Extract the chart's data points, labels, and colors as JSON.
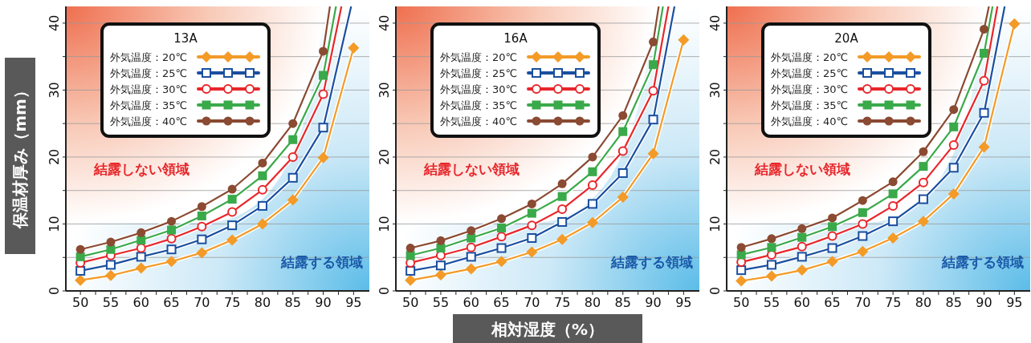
{
  "chart_data": [
    {
      "type": "line",
      "legend_title": "13A",
      "ylabel": "保温材厚み（mm）",
      "legend": "top left",
      "grid": "y",
      "xlim": [
        47.6,
        97.6
      ],
      "ylim": [
        0,
        42.5
      ],
      "xticks": [
        50,
        {
          "value": 52.5,
          "label": null
        },
        55,
        {
          "value": 57.5,
          "label": null
        },
        60,
        {
          "value": 62.5,
          "label": null
        },
        65,
        {
          "value": 67.5,
          "label": null
        },
        70,
        {
          "value": 72.5,
          "label": null
        },
        75,
        {
          "value": 77.5,
          "label": null
        },
        80,
        {
          "value": 82.5,
          "label": null
        },
        85,
        {
          "value": 87.5,
          "label": null
        },
        90,
        {
          "value": 92.5,
          "label": null
        },
        95
      ],
      "yticks": [
        0,
        {
          "value": 5,
          "label": null
        },
        10,
        {
          "value": 15,
          "label": null
        },
        20,
        {
          "value": 25,
          "label": null
        },
        30,
        {
          "value": 35,
          "label": null
        },
        40
      ],
      "annotations": [
        "結露しない領域",
        "結露する領域"
      ],
      "series": [
        {
          "name": "外気温度：20℃",
          "color": "#f39a27",
          "marker": "diamond",
          "x": [
            50,
            55,
            60,
            65,
            70,
            75,
            80,
            85,
            90,
            95
          ],
          "values": [
            1.6,
            2.3,
            3.4,
            4.4,
            5.7,
            7.6,
            10.0,
            13.6,
            19.9,
            36.3
          ]
        },
        {
          "name": "外気温度：25℃",
          "color": "#1a4fa0",
          "marker": "square-open",
          "x": [
            50,
            55,
            60,
            65,
            70,
            75,
            80,
            85,
            90,
            94.6
          ],
          "values": [
            3.0,
            3.9,
            5.1,
            6.2,
            7.7,
            9.8,
            12.7,
            16.9,
            24.4,
            42.5
          ]
        },
        {
          "name": "外気温度：30℃",
          "color": "#e8262b",
          "marker": "circle-open",
          "x": [
            50,
            55,
            60,
            65,
            70,
            75,
            80,
            85,
            90,
            93.0
          ],
          "values": [
            4.2,
            5.3,
            6.4,
            7.8,
            9.6,
            11.8,
            15.1,
            20.0,
            29.4,
            42.5
          ]
        },
        {
          "name": "外気温度：35℃",
          "color": "#3aa94a",
          "marker": "square",
          "x": [
            50,
            55,
            60,
            65,
            70,
            75,
            80,
            85,
            90,
            92.1
          ],
          "values": [
            5.1,
            6.2,
            7.6,
            9.1,
            11.2,
            13.7,
            17.2,
            22.6,
            32.2,
            42.5
          ]
        },
        {
          "name": "外気温度：40℃",
          "color": "#8b4a32",
          "marker": "circle",
          "x": [
            50,
            55,
            60,
            65,
            70,
            75,
            80,
            85,
            90,
            91.1
          ],
          "values": [
            6.2,
            7.3,
            8.7,
            10.4,
            12.6,
            15.2,
            19.1,
            25.0,
            35.8,
            42.5
          ]
        }
      ]
    },
    {
      "type": "line",
      "legend_title": "16A",
      "xlabel": "相対湿度（%）",
      "legend": "top left",
      "grid": "y",
      "xlim": [
        47.6,
        97.6
      ],
      "ylim": [
        0,
        42.5
      ],
      "xticks": [
        50,
        {
          "value": 52.5,
          "label": null
        },
        55,
        {
          "value": 57.5,
          "label": null
        },
        60,
        {
          "value": 62.5,
          "label": null
        },
        65,
        {
          "value": 67.5,
          "label": null
        },
        70,
        {
          "value": 72.5,
          "label": null
        },
        75,
        {
          "value": 77.5,
          "label": null
        },
        80,
        {
          "value": 82.5,
          "label": null
        },
        85,
        {
          "value": 87.5,
          "label": null
        },
        90,
        {
          "value": 92.5,
          "label": null
        },
        95
      ],
      "yticks": [
        0,
        {
          "value": 5,
          "label": null
        },
        10,
        {
          "value": 15,
          "label": null
        },
        20,
        {
          "value": 25,
          "label": null
        },
        30,
        {
          "value": 35,
          "label": null
        },
        40
      ],
      "annotations": [
        "結露しない領域",
        "結露する領域"
      ],
      "series": [
        {
          "name": "外気温度：20℃",
          "color": "#f39a27",
          "marker": "diamond",
          "x": [
            50,
            55,
            60,
            65,
            70,
            75,
            80,
            85,
            90,
            95
          ],
          "values": [
            1.6,
            2.4,
            3.3,
            4.4,
            5.8,
            7.7,
            10.2,
            14.0,
            20.5,
            37.5
          ]
        },
        {
          "name": "外気温度：25℃",
          "color": "#1a4fa0",
          "marker": "square-open",
          "x": [
            50,
            55,
            60,
            65,
            70,
            75,
            80,
            85,
            90,
            93.5
          ],
          "values": [
            3.0,
            3.8,
            5.1,
            6.4,
            7.9,
            10.3,
            13.0,
            17.6,
            25.6,
            42.5
          ]
        },
        {
          "name": "外気温度：30℃",
          "color": "#e8262b",
          "marker": "circle-open",
          "x": [
            50,
            55,
            60,
            65,
            70,
            75,
            80,
            85,
            90,
            92.5
          ],
          "values": [
            4.2,
            5.3,
            6.5,
            8.1,
            9.8,
            12.2,
            15.8,
            20.9,
            29.9,
            42.5
          ]
        },
        {
          "name": "外気温度：35℃",
          "color": "#3aa94a",
          "marker": "square",
          "x": [
            50,
            55,
            60,
            65,
            70,
            75,
            80,
            85,
            90,
            91.6
          ],
          "values": [
            5.3,
            6.4,
            7.9,
            9.4,
            11.6,
            14.1,
            17.8,
            23.8,
            33.8,
            42.5
          ]
        },
        {
          "name": "外気温度：40℃",
          "color": "#8b4a32",
          "marker": "circle",
          "x": [
            50,
            55,
            60,
            65,
            70,
            75,
            80,
            85,
            90,
            90.9
          ],
          "values": [
            6.4,
            7.5,
            9.0,
            10.8,
            13.0,
            16.0,
            20.0,
            26.2,
            37.2,
            42.5
          ]
        }
      ]
    },
    {
      "type": "line",
      "legend_title": "20A",
      "legend": "top left",
      "grid": "y",
      "xlim": [
        47.6,
        97.6
      ],
      "ylim": [
        0,
        42.5
      ],
      "xticks": [
        50,
        {
          "value": 52.5,
          "label": null
        },
        55,
        {
          "value": 57.5,
          "label": null
        },
        60,
        {
          "value": 62.5,
          "label": null
        },
        65,
        {
          "value": 67.5,
          "label": null
        },
        70,
        {
          "value": 72.5,
          "label": null
        },
        75,
        {
          "value": 77.5,
          "label": null
        },
        80,
        {
          "value": 82.5,
          "label": null
        },
        85,
        {
          "value": 87.5,
          "label": null
        },
        90,
        {
          "value": 92.5,
          "label": null
        },
        95
      ],
      "yticks": [
        0,
        {
          "value": 5,
          "label": null
        },
        10,
        {
          "value": 15,
          "label": null
        },
        20,
        {
          "value": 25,
          "label": null
        },
        30,
        {
          "value": 35,
          "label": null
        },
        40
      ],
      "annotations": [
        "結露しない領域",
        "結露する領域"
      ],
      "series": [
        {
          "name": "外気温度：20℃",
          "color": "#f39a27",
          "marker": "diamond",
          "x": [
            50,
            55,
            60,
            65,
            70,
            75,
            80,
            85,
            90,
            95
          ],
          "values": [
            1.5,
            2.2,
            3.1,
            4.4,
            5.9,
            7.9,
            10.4,
            14.5,
            21.5,
            39.9
          ]
        },
        {
          "name": "外気温度：25℃",
          "color": "#1a4fa0",
          "marker": "square-open",
          "x": [
            50,
            55,
            60,
            65,
            70,
            75,
            80,
            85,
            90,
            93.4
          ],
          "values": [
            3.1,
            3.9,
            5.1,
            6.4,
            8.2,
            10.4,
            13.7,
            18.4,
            26.6,
            42.5
          ]
        },
        {
          "name": "外気温度：30℃",
          "color": "#e8262b",
          "marker": "circle-open",
          "x": [
            50,
            55,
            60,
            65,
            70,
            75,
            80,
            85,
            90,
            92.2
          ],
          "values": [
            4.3,
            5.4,
            6.6,
            8.2,
            10.0,
            12.7,
            16.2,
            21.8,
            31.4,
            42.5
          ]
        },
        {
          "name": "外気温度：35℃",
          "color": "#3aa94a",
          "marker": "square",
          "x": [
            50,
            55,
            60,
            65,
            70,
            75,
            80,
            85,
            90,
            91.4
          ],
          "values": [
            5.4,
            6.5,
            8.0,
            9.6,
            11.7,
            14.5,
            18.6,
            24.5,
            35.5,
            42.5
          ]
        },
        {
          "name": "外気温度：40℃",
          "color": "#8b4a32",
          "marker": "circle",
          "x": [
            50,
            55,
            60,
            65,
            70,
            75,
            80,
            85,
            90,
            90.8
          ],
          "values": [
            6.5,
            7.8,
            9.3,
            10.9,
            13.5,
            16.3,
            20.8,
            27.1,
            39.1,
            42.5
          ]
        }
      ]
    }
  ]
}
